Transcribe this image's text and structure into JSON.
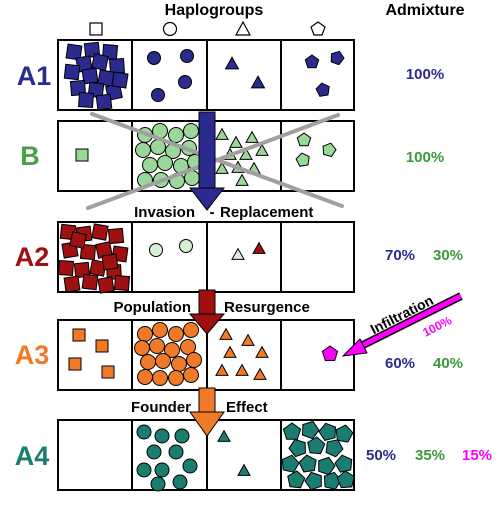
{
  "header": {
    "haplogroups_label": "Haplogroups",
    "admixture_label": "Admixture",
    "shape_icons": [
      "square-icon",
      "circle-icon",
      "triangle-icon",
      "pentagon-icon"
    ]
  },
  "colors": {
    "A1": "#2b2b8f",
    "B": "#9ad89a",
    "B_label": "#4aa04a",
    "A2": "#a01010",
    "A2_faded": "#d6f0d6",
    "A3": "#f07a28",
    "A4": "#1a7d6f",
    "magenta": "#ff00ff",
    "green_text": "#3a9a3a",
    "blue_text": "#2b2b8f",
    "cross_line": "#a0a0a0"
  },
  "rows": [
    {
      "id": "A1",
      "label": "A1",
      "admixture": [
        {
          "text": "100%",
          "color": "blue"
        }
      ]
    },
    {
      "id": "B",
      "label": "B",
      "admixture": [
        {
          "text": "100%",
          "color": "green"
        }
      ]
    },
    {
      "id": "A2",
      "label": "A2",
      "admixture": [
        {
          "text": "70%",
          "color": "blue"
        },
        {
          "text": "30%",
          "color": "green"
        }
      ]
    },
    {
      "id": "A3",
      "label": "A3",
      "admixture": [
        {
          "text": "60%",
          "color": "blue"
        },
        {
          "text": "40%",
          "color": "green"
        }
      ]
    },
    {
      "id": "A4",
      "label": "A4",
      "admixture": [
        {
          "text": "50%",
          "color": "blue"
        },
        {
          "text": "35%",
          "color": "green"
        },
        {
          "text": "15%",
          "color": "magenta"
        }
      ]
    }
  ],
  "events": {
    "invasion_left": "Invasion",
    "invasion_dash": "-",
    "invasion_right": "Replacement",
    "resurgence_left": "Population",
    "resurgence_right": "Resurgence",
    "founder_left": "Founder",
    "founder_right": "Effect"
  },
  "infiltration": {
    "label": "Infiltration",
    "percent": "100%"
  }
}
